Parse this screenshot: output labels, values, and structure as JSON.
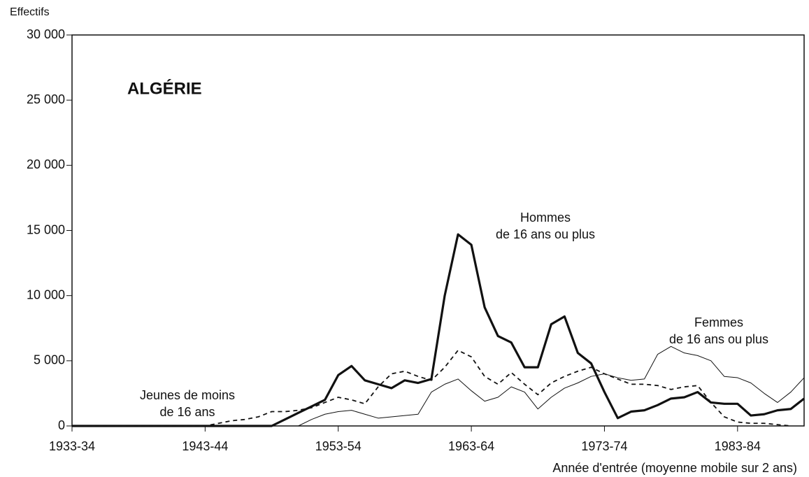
{
  "chart_data": {
    "type": "line",
    "title": "ALGÉRIE",
    "y_label": "Effectifs",
    "x_label": "Année d'entrée (moyenne mobile sur 2 ans)",
    "x": [
      1933,
      1934,
      1935,
      1936,
      1937,
      1938,
      1939,
      1940,
      1941,
      1942,
      1943,
      1944,
      1945,
      1946,
      1947,
      1948,
      1949,
      1950,
      1951,
      1952,
      1953,
      1954,
      1955,
      1956,
      1957,
      1958,
      1959,
      1960,
      1961,
      1962,
      1963,
      1964,
      1965,
      1966,
      1967,
      1968,
      1969,
      1970,
      1971,
      1972,
      1973,
      1974,
      1975,
      1976,
      1977,
      1978,
      1979,
      1980,
      1981,
      1982,
      1983,
      1984,
      1985,
      1986,
      1987,
      1988
    ],
    "xlim": [
      1933,
      1988
    ],
    "xticks": [
      {
        "value": 1933,
        "label": "1933-34"
      },
      {
        "value": 1943,
        "label": "1943-44"
      },
      {
        "value": 1953,
        "label": "1953-54"
      },
      {
        "value": 1963,
        "label": "1963-64"
      },
      {
        "value": 1973,
        "label": "1973-74"
      },
      {
        "value": 1983,
        "label": "1983-84"
      }
    ],
    "ylim": [
      0,
      30000
    ],
    "yticks": [
      0,
      {
        "value": 5000,
        "label": "5 000"
      },
      {
        "value": 10000,
        "label": "10 000"
      },
      {
        "value": 15000,
        "label": "15 000"
      },
      {
        "value": 20000,
        "label": "20 000"
      },
      {
        "value": 25000,
        "label": "25 000"
      },
      {
        "value": 30000,
        "label": "30 000"
      }
    ],
    "grid": false,
    "series": [
      {
        "color": "#111111",
        "line_width": 3.2,
        "dash": false,
        "values": [
          0,
          0,
          0,
          0,
          0,
          0,
          0,
          0,
          0,
          0,
          0,
          0,
          0,
          0,
          0,
          0,
          500,
          1000,
          1500,
          2000,
          3900,
          4600,
          3500,
          3200,
          2900,
          3500,
          3300,
          3600,
          10000,
          14700,
          13900,
          9100,
          6900,
          6400,
          4500,
          4500,
          7800,
          8400,
          5600,
          4800,
          2600,
          600,
          1100,
          1200,
          1600,
          2100,
          2200,
          2600,
          1800,
          1700,
          1700,
          800,
          900,
          1200,
          1300,
          2100
        ]
      },
      {
        "color": "#111111",
        "line_width": 1.8,
        "dash": true,
        "values": [
          0,
          0,
          0,
          0,
          0,
          0,
          0,
          0,
          0,
          0,
          0,
          200,
          400,
          500,
          700,
          1100,
          1100,
          1200,
          1400,
          1800,
          2200,
          2000,
          1700,
          3000,
          4000,
          4200,
          3800,
          3500,
          4500,
          5800,
          5300,
          3800,
          3200,
          4100,
          3200,
          2400,
          3300,
          3800,
          4200,
          4500,
          4000,
          3600,
          3200,
          3200,
          3100,
          2800,
          3000,
          3100,
          1800,
          700,
          300,
          200,
          200,
          100,
          0,
          null
        ]
      },
      {
        "color": "#111111",
        "line_width": 1,
        "dash": false,
        "values": [
          null,
          null,
          null,
          null,
          null,
          null,
          null,
          null,
          null,
          null,
          null,
          null,
          null,
          null,
          null,
          null,
          null,
          0,
          500,
          900,
          1100,
          1200,
          900,
          600,
          700,
          800,
          900,
          2600,
          3200,
          3600,
          2700,
          1900,
          2200,
          3000,
          2600,
          1300,
          2200,
          2900,
          3300,
          3800,
          4000,
          3700,
          3500,
          3600,
          5500,
          6100,
          5600,
          5400,
          5000,
          3800,
          3700,
          3300,
          2500,
          1800,
          2600,
          3700
        ]
      }
    ],
    "annotations": [
      {
        "lines": [
          "Hommes",
          "de 16 ans ou plus"
        ]
      },
      {
        "lines": [
          "Femmes",
          "de 16 ans ou plus"
        ]
      },
      {
        "lines": [
          "Jeunes de moins",
          "de 16 ans"
        ]
      }
    ]
  }
}
